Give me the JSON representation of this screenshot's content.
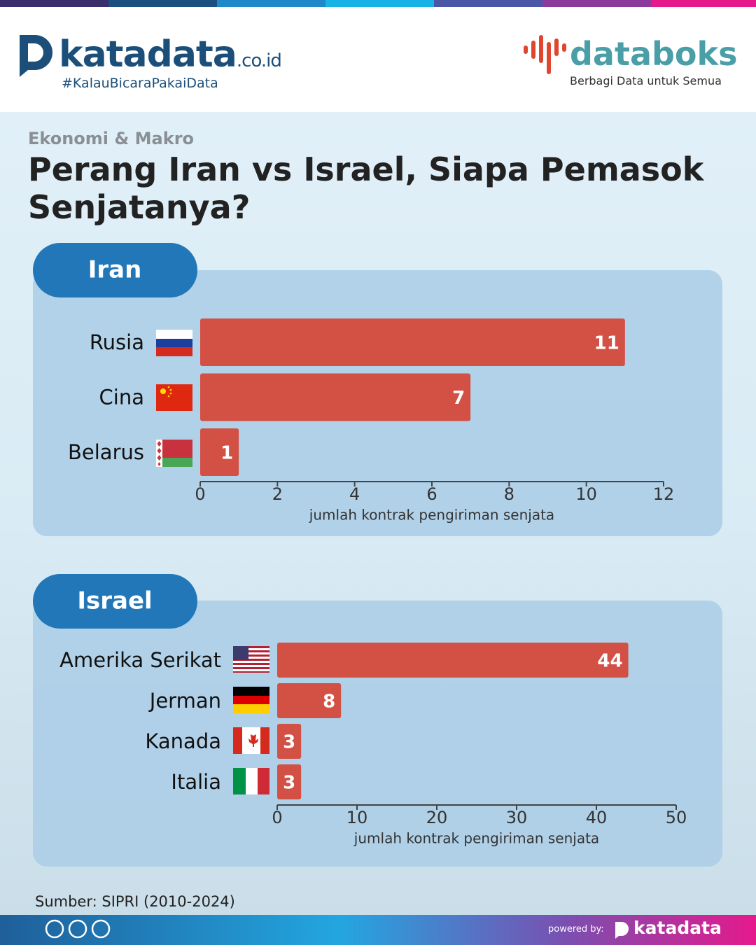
{
  "header": {
    "brand": "katadata",
    "domain": ".co.id",
    "tagline": "#KalauBicaraPakaiData",
    "brand2": "databoks",
    "tagline2": "Berbagi Data untuk Semua"
  },
  "category": "Ekonomi & Makro",
  "title": "Perang Iran vs Israel, Siapa Pemasok Senjatanya?",
  "source": "Sumber: SIPRI (2010-2024)",
  "footer": {
    "powered": "powered by:",
    "brand": "katadata"
  },
  "chart_data": [
    {
      "type": "bar",
      "orientation": "horizontal",
      "title": "Iran",
      "categories": [
        "Rusia",
        "Cina",
        "Belarus"
      ],
      "values": [
        11,
        7,
        1
      ],
      "color": "#d35045",
      "xlabel": "jumlah kontrak pengiriman senjata",
      "xlim": [
        0,
        12
      ],
      "xticks": [
        0,
        2,
        4,
        6,
        8,
        10,
        12
      ]
    },
    {
      "type": "bar",
      "orientation": "horizontal",
      "title": "Israel",
      "categories": [
        "Amerika Serikat",
        "Jerman",
        "Kanada",
        "Italia"
      ],
      "values": [
        44,
        8,
        3,
        3
      ],
      "color": "#d35045",
      "xlabel": "jumlah kontrak pengiriman senjata",
      "xlim": [
        0,
        50
      ],
      "xticks": [
        0,
        10,
        20,
        30,
        40,
        50
      ]
    }
  ]
}
